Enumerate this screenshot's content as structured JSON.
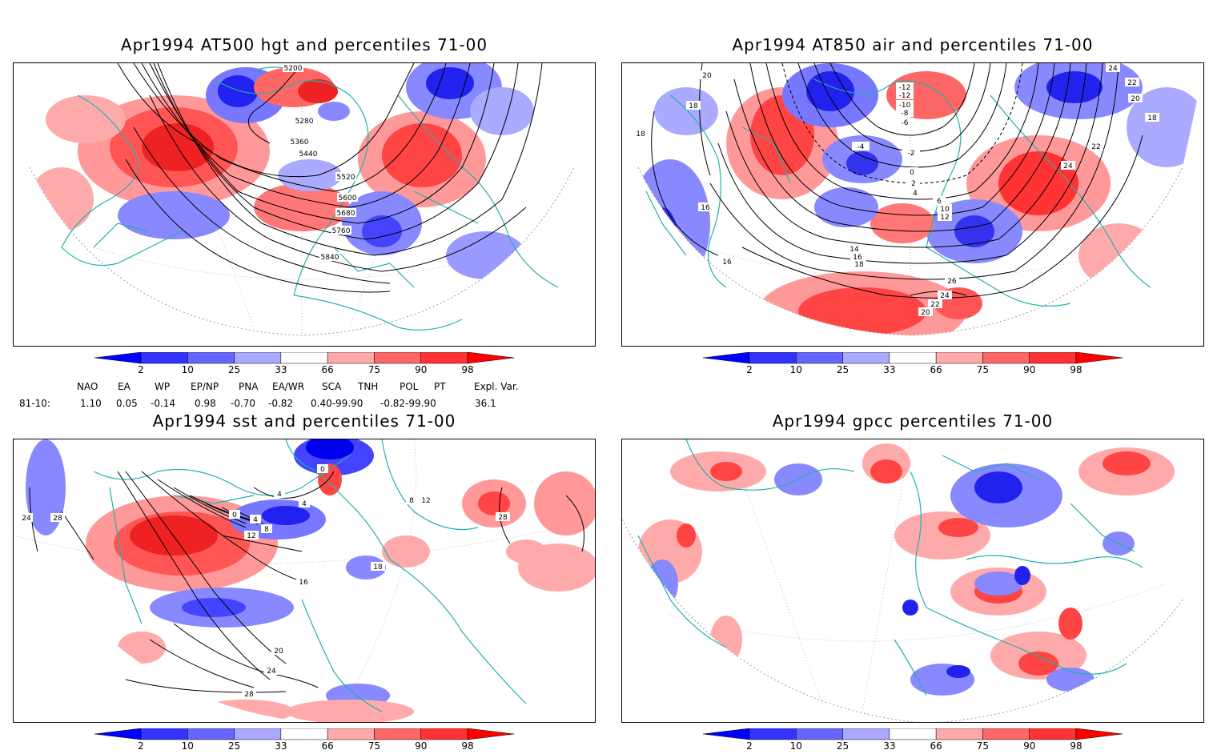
{
  "panels": {
    "hgt500": {
      "title": "Apr1994 AT500 hgt and percentiles 71-00",
      "contour_labels": [
        "5200",
        "5280",
        "5360",
        "5440",
        "5520",
        "5600",
        "5680",
        "5760",
        "5840"
      ]
    },
    "air850": {
      "title": "Apr1994 AT850 air and percentiles 71-00",
      "contour_labels": [
        "20",
        "18",
        "18",
        "16",
        "16",
        "24",
        "22",
        "20",
        "18",
        "-12",
        "-12",
        "-10",
        "-8",
        "-6",
        "-4",
        "-2",
        "0",
        "2",
        "4",
        "6",
        "10",
        "12",
        "14",
        "16",
        "18",
        "22",
        "24",
        "26",
        "24",
        "22",
        "20"
      ]
    },
    "sst": {
      "title": "Apr1994 sst and percentiles 71-00",
      "contour_labels": [
        "24",
        "28",
        "0",
        "4",
        "0",
        "4",
        "8",
        "12",
        "4",
        "8",
        "12",
        "16",
        "18",
        "20",
        "24",
        "28",
        "28"
      ]
    },
    "gpcc": {
      "title": "Apr1994 gpcc percentiles 71-00"
    }
  },
  "colorbar": {
    "labels": [
      "2",
      "10",
      "25",
      "33",
      "66",
      "75",
      "90",
      "98"
    ],
    "colors": [
      "#0000ff",
      "#3333ff",
      "#6666ff",
      "#a9a9ff",
      "#ffffff",
      "#ffaaaa",
      "#ff6666",
      "#ff3333",
      "#ff0000"
    ]
  },
  "indices": {
    "headers": [
      "NAO",
      "EA",
      "WP",
      "EP/NP",
      "PNA",
      "EA/WR",
      "SCA",
      "TNH",
      "POL",
      "PT",
      "Expl. Var."
    ],
    "row_label": "81-10:",
    "values": [
      "1.10",
      "0.05",
      "-0.14",
      "0.98",
      "-0.70",
      "-0.82",
      "0.40-99.90",
      "-0.82-99.90",
      "36.1"
    ]
  },
  "colors": {
    "coast": "#20b2aa",
    "contour": "#000000",
    "grid": "#999999"
  }
}
